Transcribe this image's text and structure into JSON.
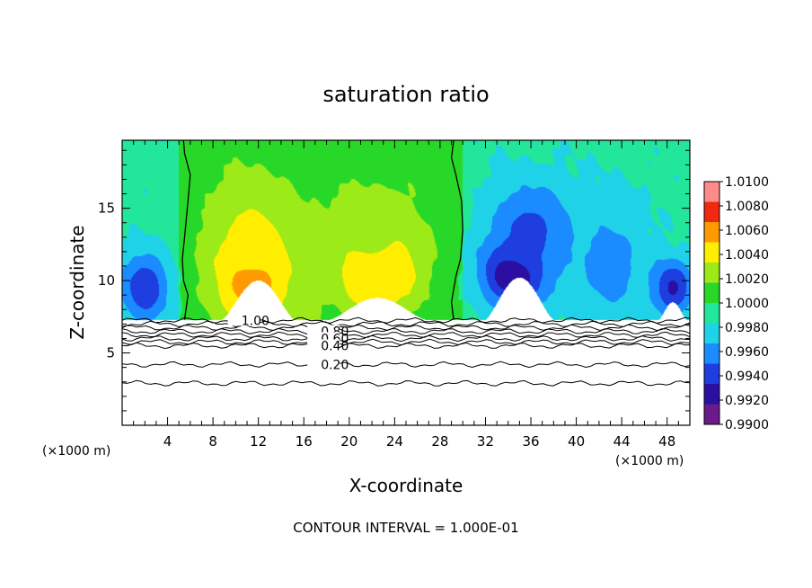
{
  "chart_data": {
    "type": "heatmap",
    "title": "saturation ratio",
    "xlabel": "X-coordinate",
    "ylabel": "Z-coordinate",
    "x_unit_left": "(×1000 m)",
    "x_unit_right": "(×1000 m)",
    "footer": "CONTOUR INTERVAL = 1.000E-01",
    "xlim": [
      0,
      50
    ],
    "ylim": [
      0,
      19.7
    ],
    "x_ticks": [
      4,
      8,
      12,
      16,
      20,
      24,
      28,
      32,
      36,
      40,
      44,
      48
    ],
    "x_tick_labels": [
      "4",
      "8",
      "12",
      "16",
      "20",
      "24",
      "28",
      "32",
      "36",
      "40",
      "44",
      "48"
    ],
    "y_ticks": [
      5,
      10,
      15
    ],
    "y_tick_labels": [
      "5",
      "10",
      "15"
    ],
    "colorbar": {
      "min": 0.99,
      "max": 1.01,
      "labels": [
        "1.0100",
        "1.0080",
        "1.0060",
        "1.0040",
        "1.0020",
        "1.0000",
        "0.9980",
        "0.9960",
        "0.9940",
        "0.9920",
        "0.9900"
      ],
      "colors": [
        "#6a1a8a",
        "#2a0fa0",
        "#1e3ee0",
        "#1a8cff",
        "#20d2e8",
        "#22e69a",
        "#28d828",
        "#9cea18",
        "#ffee00",
        "#ff9a00",
        "#f02a10",
        "#ff8a8a"
      ]
    },
    "cloud_base_z": 7.3,
    "series": [
      {
        "type": "contour",
        "label": "1.00",
        "z": 7.25
      },
      {
        "type": "contour",
        "label": "0.80",
        "z": 6.5
      },
      {
        "type": "contour",
        "label": "0.60",
        "z": 6.0
      },
      {
        "type": "contour",
        "label": "0.40",
        "z": 5.5
      },
      {
        "type": "contour",
        "label": "0.20",
        "z": 4.2
      },
      {
        "type": "contour",
        "label": "",
        "z": 7.0
      },
      {
        "type": "contour",
        "label": "",
        "z": 6.75
      },
      {
        "type": "contour",
        "label": "",
        "z": 6.25
      },
      {
        "type": "contour",
        "label": "",
        "z": 5.75
      },
      {
        "type": "contour",
        "label": "",
        "z": 2.9
      }
    ],
    "blobs": [
      {
        "x": 11.5,
        "z": 10.5,
        "sx": 3.2,
        "sz": 3.2,
        "v": 1.0085
      },
      {
        "x": 11.5,
        "z": 13.5,
        "sx": 4.5,
        "sz": 4.5,
        "v": 1.0035
      },
      {
        "x": 22.5,
        "z": 11.0,
        "sx": 3.4,
        "sz": 3.0,
        "v": 1.0082
      },
      {
        "x": 22.0,
        "z": 13.0,
        "sx": 5.0,
        "sz": 4.0,
        "v": 1.003
      },
      {
        "x": 16.5,
        "z": 8.0,
        "sx": 1.5,
        "sz": 1.5,
        "v": 1.002
      },
      {
        "x": 2.0,
        "z": 9.5,
        "sx": 2.2,
        "sz": 2.5,
        "v": 0.9935
      },
      {
        "x": 34.5,
        "z": 10.5,
        "sx": 2.8,
        "sz": 2.2,
        "v": 0.9905
      },
      {
        "x": 36.0,
        "z": 13.5,
        "sx": 4.0,
        "sz": 3.5,
        "v": 0.9945
      },
      {
        "x": 43.0,
        "z": 11.0,
        "sx": 3.5,
        "sz": 4.5,
        "v": 0.996
      },
      {
        "x": 48.5,
        "z": 9.5,
        "sx": 1.8,
        "sz": 2.0,
        "v": 0.993
      }
    ],
    "white_domes": [
      {
        "x": 12.0,
        "top": 10.0,
        "half_width": 3.2
      },
      {
        "x": 22.5,
        "top": 8.8,
        "half_width": 4.2
      },
      {
        "x": 35.0,
        "top": 10.2,
        "half_width": 3.0
      },
      {
        "x": 48.5,
        "top": 8.5,
        "half_width": 1.2
      }
    ],
    "vertical_contours": [
      {
        "x_path": [
          [
            5.4,
            19.7
          ],
          [
            5.5,
            18.8
          ],
          [
            6.0,
            17.3
          ],
          [
            5.8,
            15.5
          ],
          [
            5.5,
            13.0
          ],
          [
            5.3,
            11.5
          ],
          [
            5.4,
            10.0
          ],
          [
            5.8,
            9.0
          ],
          [
            5.5,
            7.3
          ]
        ]
      },
      {
        "x_path": [
          [
            29.2,
            19.7
          ],
          [
            29.0,
            18.5
          ],
          [
            29.4,
            17.3
          ],
          [
            29.9,
            15.5
          ],
          [
            30.0,
            13.5
          ],
          [
            29.8,
            11.5
          ],
          [
            29.4,
            10.3
          ],
          [
            29.0,
            8.5
          ],
          [
            29.2,
            7.3
          ]
        ]
      }
    ]
  }
}
